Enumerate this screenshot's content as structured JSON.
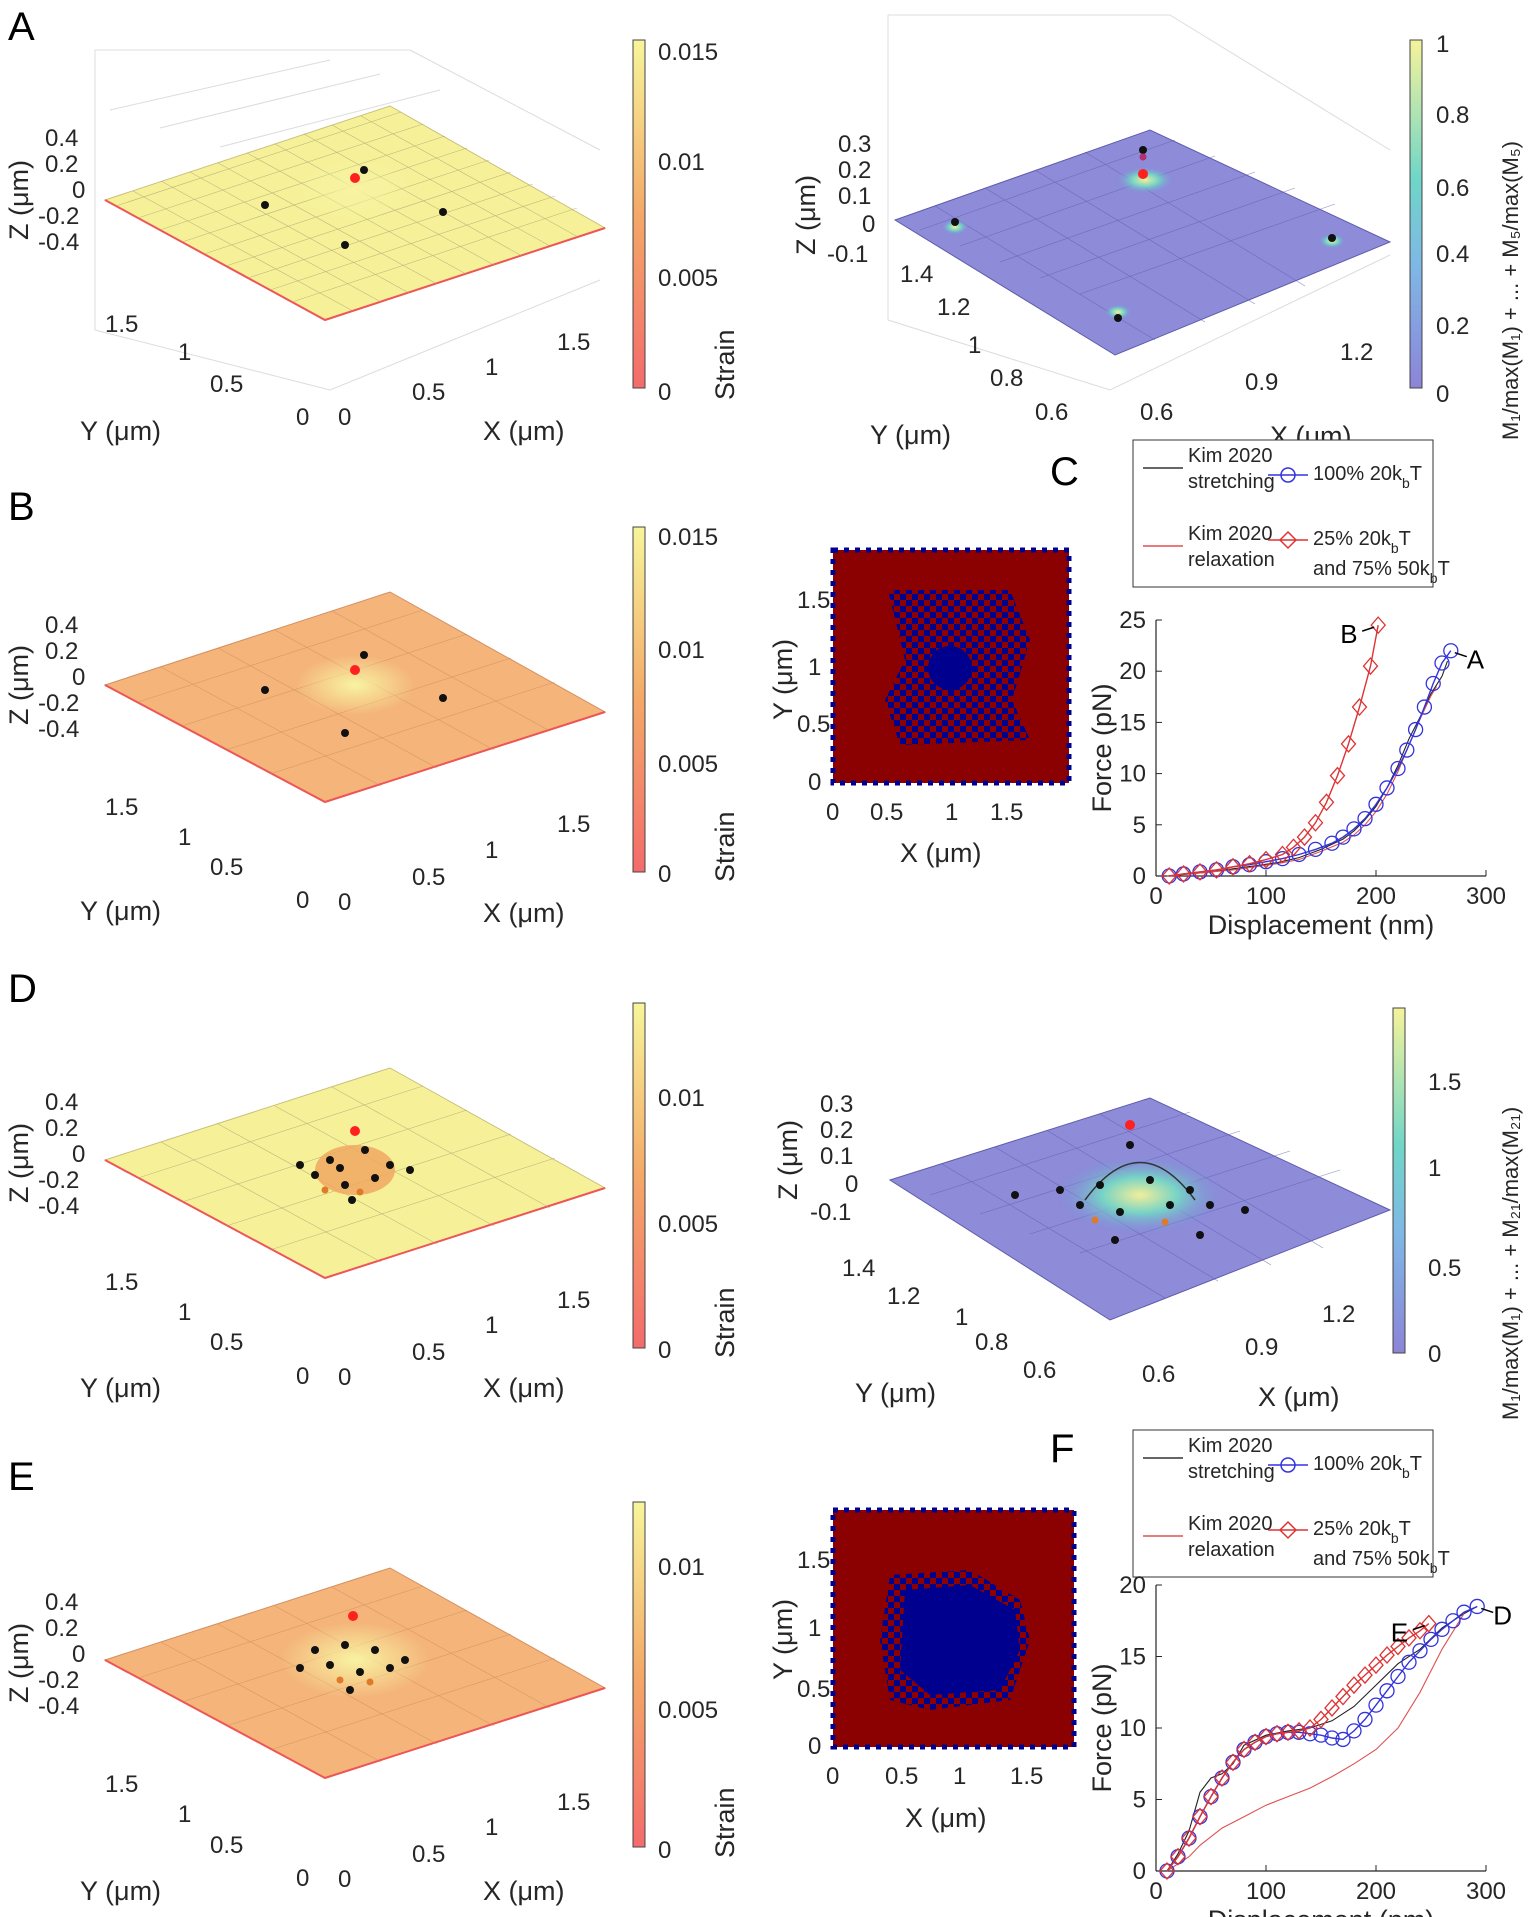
{
  "panels": {
    "A": {
      "letter": "A",
      "strain": {
        "zlabel": "Z (μm)",
        "xlabel": "X (μm)",
        "ylabel": "Y (μm)",
        "zticks": [
          "0.4",
          "0.2",
          "0",
          "-0.2",
          "-0.4"
        ],
        "xticks": [
          "0",
          "0.5",
          "1",
          "1.5"
        ],
        "yticks": [
          "1.5",
          "1",
          "0.5",
          "0"
        ],
        "colorbar": {
          "label": "Strain",
          "ticks": [
            "0.015",
            "0.01",
            "0.005",
            "0"
          ]
        }
      },
      "mode": {
        "zlabel": "Z (μm)",
        "xlabel": "X (μm)",
        "ylabel": "Y (μm)",
        "zticks": [
          "0.3",
          "0.2",
          "0.1",
          "0",
          "-0.1"
        ],
        "xticks": [
          "0.6",
          "0.9",
          "1.2"
        ],
        "yticks": [
          "1.4",
          "1.2",
          "1",
          "0.8",
          "0.6"
        ],
        "colorbar": {
          "label": "M₁/max(M₁) + ... + M₅/max(M₅)",
          "ticks": [
            "1",
            "0.8",
            "0.6",
            "0.4",
            "0.2",
            "0"
          ]
        }
      }
    },
    "B": {
      "letter": "B",
      "strain": {
        "zlabel": "Z (μm)",
        "xlabel": "X (μm)",
        "ylabel": "Y (μm)",
        "zticks": [
          "0.4",
          "0.2",
          "0",
          "-0.2",
          "-0.4"
        ],
        "xticks": [
          "0",
          "0.5",
          "1",
          "1.5"
        ],
        "yticks": [
          "1.5",
          "1",
          "0.5",
          "0"
        ],
        "colorbar": {
          "label": "Strain",
          "ticks": [
            "0.015",
            "0.01",
            "0.005",
            "0"
          ]
        }
      },
      "map": {
        "xlabel": "X (μm)",
        "ylabel": "Y (μm)",
        "xticks": [
          "0",
          "0.5",
          "1",
          "1.5"
        ],
        "yticks": [
          "1.5",
          "1",
          "0.5",
          "0"
        ]
      }
    },
    "D": {
      "letter": "D",
      "strain": {
        "zlabel": "Z (μm)",
        "xlabel": "X (μm)",
        "ylabel": "Y (μm)",
        "zticks": [
          "0.4",
          "0.2",
          "0",
          "-0.2",
          "-0.4"
        ],
        "xticks": [
          "0",
          "0.5",
          "1",
          "1.5"
        ],
        "yticks": [
          "1.5",
          "1",
          "0.5",
          "0"
        ],
        "colorbar": {
          "label": "Strain",
          "ticks": [
            "0.01",
            "0.005",
            "0"
          ]
        }
      },
      "mode": {
        "zlabel": "Z (μm)",
        "xlabel": "X (μm)",
        "ylabel": "Y (μm)",
        "zticks": [
          "0.3",
          "0.2",
          "0.1",
          "0",
          "-0.1"
        ],
        "xticks": [
          "0.6",
          "0.9",
          "1.2"
        ],
        "yticks": [
          "1.4",
          "1.2",
          "1",
          "0.8",
          "0.6"
        ],
        "colorbar": {
          "label": "M₁/max(M₁) + ... + M₂₁/max(M₂₁)",
          "ticks": [
            "1.5",
            "1",
            "0.5",
            "0"
          ]
        }
      }
    },
    "E": {
      "letter": "E",
      "strain": {
        "zlabel": "Z (μm)",
        "xlabel": "X (μm)",
        "ylabel": "Y (μm)",
        "zticks": [
          "0.4",
          "0.2",
          "0",
          "-0.2",
          "-0.4"
        ],
        "xticks": [
          "0",
          "0.5",
          "1",
          "1.5"
        ],
        "yticks": [
          "1.5",
          "1",
          "0.5",
          "0"
        ],
        "colorbar": {
          "label": "Strain",
          "ticks": [
            "0.01",
            "0.005",
            "0"
          ]
        }
      },
      "map": {
        "xlabel": "X (μm)",
        "ylabel": "Y (μm)",
        "xticks": [
          "0",
          "0.5",
          "1",
          "1.5"
        ],
        "yticks": [
          "1.5",
          "1",
          "0.5",
          "0"
        ]
      }
    }
  },
  "chart_data": [
    {
      "panel": "C",
      "type": "line",
      "xlabel": "Displacement (nm)",
      "ylabel": "Force (pN)",
      "xlim": [
        0,
        300
      ],
      "ylim": [
        0,
        25
      ],
      "xticks": [
        0,
        100,
        200,
        300
      ],
      "yticks": [
        0,
        5,
        10,
        15,
        20,
        25
      ],
      "legend": [
        {
          "line1": "Kim 2020",
          "line2": "stretching",
          "color": "#333333",
          "marker": "line"
        },
        {
          "line1": "100% 20k",
          "sub": "b",
          "tail": "T",
          "color": "#3333dd",
          "marker": "circle"
        },
        {
          "line1": "Kim 2020",
          "line2": "relaxation",
          "color": "#e05050",
          "marker": "line"
        },
        {
          "line1": "25% 20k",
          "sub": "b",
          "tail": "T",
          "line2": "and 75% 50k",
          "sub2": "b",
          "tail2": "T",
          "color": "#dd3333",
          "marker": "diamond"
        }
      ],
      "annotations": [
        {
          "text": "B",
          "x": 202,
          "y": 24.5
        },
        {
          "text": "A",
          "x": 268,
          "y": 22
        }
      ],
      "series": [
        {
          "name": "Kim 2020 stretching",
          "color": "#222222",
          "x": [
            10,
            30,
            50,
            70,
            90,
            110,
            130,
            150,
            170,
            180,
            190,
            200,
            210,
            220,
            230,
            240,
            250,
            260,
            265
          ],
          "y": [
            0,
            0.2,
            0.4,
            0.7,
            1.0,
            1.3,
            1.8,
            2.6,
            3.6,
            4.4,
            5.5,
            6.8,
            8.6,
            10.8,
            13.4,
            15.5,
            17.8,
            19.5,
            21
          ]
        },
        {
          "name": "Kim 2020 relaxation",
          "color": "#e05050",
          "x": [
            10,
            30,
            50,
            70,
            90,
            110,
            130,
            150,
            170,
            180,
            190,
            200,
            210,
            220,
            230,
            240,
            250,
            255
          ],
          "y": [
            0,
            0.2,
            0.4,
            0.6,
            0.9,
            1.2,
            1.6,
            2.4,
            3.3,
            4.0,
            5.0,
            6.3,
            8.0,
            10.2,
            12.8,
            15.3,
            17.6,
            18.5
          ]
        },
        {
          "name": "100% 20kbT",
          "color": "#3333dd",
          "marker": "circle",
          "x": [
            12,
            25,
            40,
            55,
            70,
            85,
            100,
            115,
            130,
            145,
            160,
            170,
            180,
            190,
            200,
            210,
            220,
            228,
            236,
            244,
            252,
            260,
            268
          ],
          "y": [
            0,
            0.2,
            0.4,
            0.6,
            0.9,
            1.1,
            1.4,
            1.7,
            2.1,
            2.6,
            3.2,
            3.8,
            4.6,
            5.6,
            7.0,
            8.6,
            10.5,
            12.3,
            14.3,
            16.5,
            18.8,
            20.8,
            22
          ]
        },
        {
          "name": "25% 20kbT and 75% 50kbT",
          "color": "#dd3333",
          "marker": "diamond",
          "x": [
            12,
            25,
            40,
            55,
            70,
            85,
            100,
            115,
            125,
            135,
            145,
            155,
            165,
            175,
            185,
            195,
            202
          ],
          "y": [
            0,
            0.2,
            0.4,
            0.6,
            0.9,
            1.2,
            1.6,
            2.1,
            2.8,
            3.8,
            5.2,
            7.2,
            9.8,
            12.9,
            16.5,
            20.5,
            24.5
          ]
        }
      ]
    },
    {
      "panel": "F",
      "type": "line",
      "xlabel": "Displacement (nm)",
      "ylabel": "Force (pN)",
      "xlim": [
        0,
        300
      ],
      "ylim": [
        0,
        20
      ],
      "xticks": [
        0,
        100,
        200,
        300
      ],
      "yticks": [
        0,
        5,
        10,
        15,
        20
      ],
      "legend": [
        {
          "line1": "Kim 2020",
          "line2": "stretching",
          "color": "#333333",
          "marker": "line"
        },
        {
          "line1": "100% 20k",
          "sub": "b",
          "tail": "T",
          "color": "#3333dd",
          "marker": "circle"
        },
        {
          "line1": "Kim 2020",
          "line2": "relaxation",
          "color": "#e05050",
          "marker": "line"
        },
        {
          "line1": "25% 20k",
          "sub": "b",
          "tail": "T",
          "line2": "and 75% 50k",
          "sub2": "b",
          "tail2": "T",
          "color": "#dd3333",
          "marker": "diamond"
        }
      ],
      "annotations": [
        {
          "text": "E",
          "x": 248,
          "y": 17.3
        },
        {
          "text": "D",
          "x": 292,
          "y": 18.5
        }
      ],
      "series": [
        {
          "name": "Kim 2020 stretching",
          "color": "#222222",
          "x": [
            10,
            20,
            30,
            40,
            50,
            60,
            70,
            80,
            100,
            120,
            140,
            160,
            180,
            200,
            220,
            240,
            260,
            280,
            292
          ],
          "y": [
            0,
            1.2,
            2.8,
            5.5,
            6.5,
            6.8,
            7.5,
            8.8,
            9.5,
            9.8,
            10.0,
            10.5,
            11.5,
            13.0,
            14.5,
            15.5,
            17.0,
            18.0,
            18.5
          ]
        },
        {
          "name": "Kim 2020 relaxation",
          "color": "#e05050",
          "x": [
            10,
            20,
            30,
            40,
            60,
            80,
            100,
            120,
            140,
            160,
            180,
            200,
            220,
            240,
            260,
            280
          ],
          "y": [
            0,
            0.5,
            1.0,
            1.8,
            3.0,
            3.8,
            4.6,
            5.2,
            5.8,
            6.6,
            7.5,
            8.5,
            10.0,
            12.5,
            15.5,
            18.0
          ]
        },
        {
          "name": "100% 20kbT",
          "color": "#3333dd",
          "marker": "circle",
          "x": [
            10,
            20,
            30,
            40,
            50,
            60,
            70,
            80,
            90,
            100,
            110,
            120,
            130,
            140,
            150,
            160,
            170,
            180,
            190,
            200,
            210,
            220,
            230,
            240,
            250,
            260,
            270,
            280,
            292
          ],
          "y": [
            0,
            1.0,
            2.3,
            3.8,
            5.2,
            6.5,
            7.6,
            8.5,
            9.0,
            9.4,
            9.6,
            9.7,
            9.7,
            9.6,
            9.5,
            9.3,
            9.2,
            9.8,
            10.6,
            11.6,
            12.6,
            13.6,
            14.6,
            15.4,
            16.2,
            16.9,
            17.5,
            18.1,
            18.5
          ]
        },
        {
          "name": "25% 20kbT and 75% 50kbT",
          "color": "#dd3333",
          "marker": "diamond",
          "x": [
            10,
            20,
            30,
            40,
            50,
            60,
            70,
            80,
            90,
            100,
            110,
            120,
            130,
            140,
            150,
            160,
            170,
            180,
            190,
            200,
            210,
            220,
            230,
            240,
            248
          ],
          "y": [
            0,
            1.0,
            2.3,
            3.8,
            5.2,
            6.5,
            7.6,
            8.5,
            9.0,
            9.4,
            9.6,
            9.7,
            9.8,
            10.0,
            10.6,
            11.4,
            12.2,
            13.0,
            13.7,
            14.4,
            15.1,
            15.7,
            16.3,
            16.8,
            17.3
          ]
        }
      ]
    }
  ]
}
